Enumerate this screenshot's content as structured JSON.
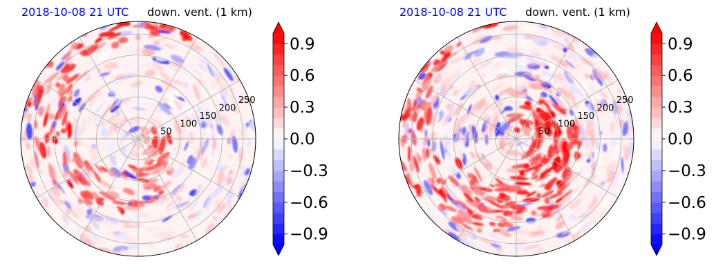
{
  "colors": {
    "positive": "#ff0000",
    "negative": "#0000ff",
    "zero": "#ffffff",
    "grid": "#b0b0b0",
    "datetime_text": "#0000ff"
  },
  "colorbar": {
    "ticks": [
      "0.9",
      "0.6",
      "0.3",
      "0.0",
      "−0.3",
      "−0.6",
      "−0.9"
    ],
    "min": -1.0,
    "max": 1.0,
    "levels": 20,
    "extend": "both"
  },
  "chart_data": [
    {
      "type": "heatmap",
      "projection": "polar",
      "datetime": "2018-10-08 21 UTC",
      "title": "down. vent. (1 km)",
      "radial_ticks": [
        "50",
        "100",
        "150",
        "200",
        "250"
      ],
      "radial_tick_values": [
        50,
        100,
        150,
        200,
        250
      ],
      "r_max": 280,
      "vmin": -1.0,
      "vmax": 1.0
    },
    {
      "type": "heatmap",
      "projection": "polar",
      "datetime": "2018-10-08 21 UTC",
      "title": "down. vent. (1 km)",
      "radial_ticks": [
        "50",
        "100",
        "150",
        "200",
        "250"
      ],
      "radial_tick_values": [
        50,
        100,
        150,
        200,
        250
      ],
      "r_max": 280,
      "vmin": -1.0,
      "vmax": 1.0
    }
  ]
}
